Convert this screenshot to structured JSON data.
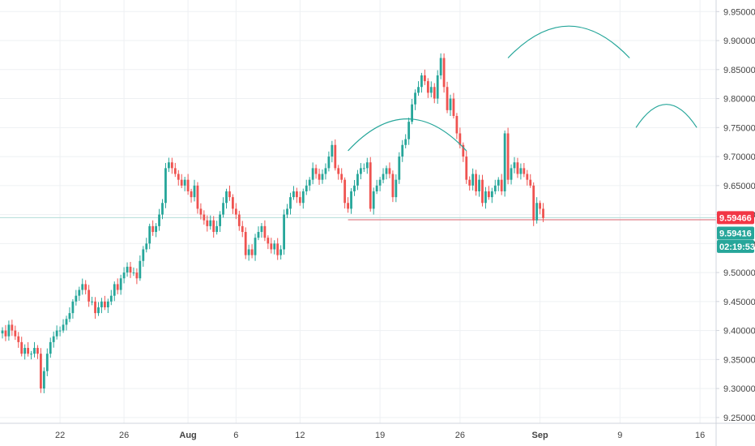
{
  "chart_data": {
    "type": "candlestick",
    "title": "",
    "xlabel": "",
    "ylabel": "",
    "ylim": [
      9.24,
      9.97
    ],
    "grid": true,
    "y_ticks": [
      "9.95000",
      "9.90000",
      "9.85000",
      "9.80000",
      "9.75000",
      "9.70000",
      "9.65000",
      "9.60000",
      "9.55000",
      "9.50000",
      "9.45000",
      "9.40000",
      "9.35000",
      "9.30000",
      "9.25000"
    ],
    "x_ticks": [
      {
        "label": "22",
        "bar": 18
      },
      {
        "label": "26",
        "bar": 38
      },
      {
        "label": "Aug",
        "bar": 58
      },
      {
        "label": "6",
        "bar": 73
      },
      {
        "label": "12",
        "bar": 93
      },
      {
        "label": "19",
        "bar": 118
      },
      {
        "label": "26",
        "bar": 143
      },
      {
        "label": "Sep",
        "bar": 168
      },
      {
        "label": "9",
        "bar": 193
      },
      {
        "label": "16",
        "bar": 218
      }
    ],
    "close_series": [
      9.4,
      9.39,
      9.41,
      9.4,
      9.39,
      9.38,
      9.36,
      9.37,
      9.36,
      9.36,
      9.37,
      9.36,
      9.3,
      9.33,
      9.36,
      9.38,
      9.39,
      9.4,
      9.4,
      9.41,
      9.42,
      9.43,
      9.45,
      9.46,
      9.47,
      9.48,
      9.47,
      9.45,
      9.45,
      9.43,
      9.44,
      9.45,
      9.44,
      9.45,
      9.46,
      9.48,
      9.47,
      9.49,
      9.5,
      9.51,
      9.5,
      9.5,
      9.49,
      9.52,
      9.54,
      9.55,
      9.58,
      9.57,
      9.58,
      9.6,
      9.62,
      9.68,
      9.69,
      9.68,
      9.67,
      9.66,
      9.65,
      9.66,
      9.64,
      9.63,
      9.65,
      9.61,
      9.6,
      9.59,
      9.58,
      9.59,
      9.57,
      9.58,
      9.6,
      9.62,
      9.64,
      9.63,
      9.61,
      9.6,
      9.58,
      9.57,
      9.53,
      9.54,
      9.53,
      9.56,
      9.57,
      9.58,
      9.56,
      9.55,
      9.54,
      9.55,
      9.53,
      9.54,
      9.6,
      9.61,
      9.63,
      9.64,
      9.63,
      9.62,
      9.64,
      9.65,
      9.66,
      9.68,
      9.67,
      9.66,
      9.67,
      9.68,
      9.7,
      9.72,
      9.68,
      9.67,
      9.66,
      9.62,
      9.61,
      9.64,
      9.65,
      9.67,
      9.68,
      9.68,
      9.69,
      9.61,
      9.64,
      9.65,
      9.66,
      9.67,
      9.68,
      9.67,
      9.63,
      9.66,
      9.7,
      9.72,
      9.73,
      9.76,
      9.79,
      9.81,
      9.82,
      9.84,
      9.83,
      9.81,
      9.82,
      9.8,
      9.84,
      9.87,
      9.82,
      9.78,
      9.8,
      9.77,
      9.74,
      9.72,
      9.7,
      9.66,
      9.65,
      9.67,
      9.64,
      9.66,
      9.62,
      9.64,
      9.63,
      9.64,
      9.65,
      9.66,
      9.64,
      9.74,
      9.66,
      9.68,
      9.69,
      9.67,
      9.68,
      9.67,
      9.66,
      9.65,
      9.59,
      9.62,
      9.61,
      9.594
    ],
    "resistance_level": 9.59466,
    "tags": [
      {
        "text": "9.59466",
        "color": "#f23645"
      },
      {
        "text": "9.59416",
        "color": "#26a69a"
      },
      {
        "text": "02:19:53",
        "color": "#26a69a"
      }
    ],
    "colors": {
      "up": "#26a69a",
      "down": "#ef5350",
      "grid": "#eef0f3",
      "axis": "#d1d4dc",
      "level_line": "#e0828a",
      "arc": "#26a69a",
      "h_line": "#b2ddd9"
    }
  }
}
